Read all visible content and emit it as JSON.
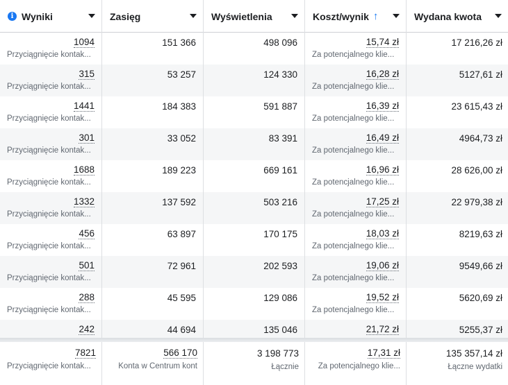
{
  "header": {
    "columns": [
      {
        "label": "Wyniki",
        "info": "i"
      },
      {
        "label": "Zasięg"
      },
      {
        "label": "Wyświetlenia"
      },
      {
        "label": "Koszt/wynik",
        "sort": "↑"
      },
      {
        "label": "Wydana kwota"
      }
    ]
  },
  "labels": {
    "result_sub": "Przyciągnięcie kontak...",
    "cost_sub": "Za potencjalnego klie..."
  },
  "rows": [
    {
      "results": "1094",
      "reach": "151 366",
      "impressions": "498 096",
      "cost": "15,74 zł",
      "spent": "17 216,26 zł"
    },
    {
      "results": "315",
      "reach": "53 257",
      "impressions": "124 330",
      "cost": "16,28 zł",
      "spent": "5127,61 zł"
    },
    {
      "results": "1441",
      "reach": "184 383",
      "impressions": "591 887",
      "cost": "16,39 zł",
      "spent": "23 615,43 zł"
    },
    {
      "results": "301",
      "reach": "33 052",
      "impressions": "83 391",
      "cost": "16,49 zł",
      "spent": "4964,73 zł"
    },
    {
      "results": "1688",
      "reach": "189 223",
      "impressions": "669 161",
      "cost": "16,96 zł",
      "spent": "28 626,00 zł"
    },
    {
      "results": "1332",
      "reach": "137 592",
      "impressions": "503 216",
      "cost": "17,25 zł",
      "spent": "22 979,38 zł"
    },
    {
      "results": "456",
      "reach": "63 897",
      "impressions": "170 175",
      "cost": "18,03 zł",
      "spent": "8219,63 zł"
    },
    {
      "results": "501",
      "reach": "72 961",
      "impressions": "202 593",
      "cost": "19,06 zł",
      "spent": "9549,66 zł"
    },
    {
      "results": "288",
      "reach": "45 595",
      "impressions": "129 086",
      "cost": "19,52 zł",
      "spent": "5620,69 zł"
    },
    {
      "results": "242",
      "reach": "44 694",
      "impressions": "135 046",
      "cost": "21,72 zł",
      "spent": "5255,37 zł"
    }
  ],
  "totals": {
    "results": "7821",
    "results_sub": "Przyciągnięcie kontak...",
    "reach": "566 170",
    "reach_sub": "Konta w Centrum kont",
    "impressions": "3 198 773",
    "impressions_sub": "Łącznie",
    "cost": "17,31 zł",
    "cost_sub": "Za potencjalnego klie...",
    "spent": "135 357,14 zł",
    "spent_sub": "Łączne wydatki"
  }
}
